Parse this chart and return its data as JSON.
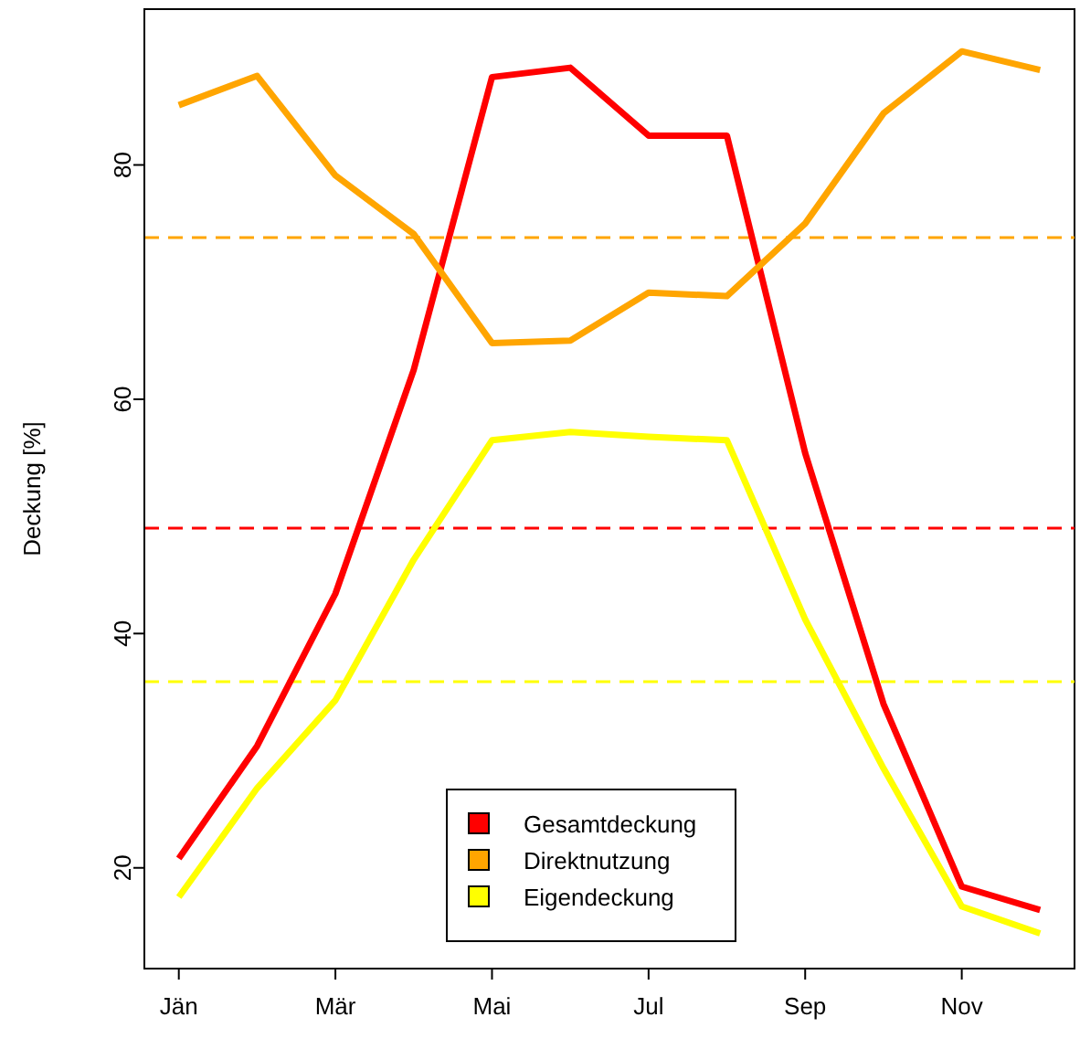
{
  "chart_data": {
    "type": "line",
    "ylabel": "Deckung [%]",
    "categories": [
      "Jän",
      null,
      "Mär",
      null,
      "Mai",
      null,
      "Jul",
      null,
      "Sep",
      null,
      "Nov",
      null
    ],
    "series": [
      {
        "name": "Gesamtdeckung",
        "color": "#ff0000",
        "values": [
          20.8,
          30.4,
          43.4,
          62.5,
          87.5,
          88.3,
          82.5,
          82.5,
          55.4,
          34.0,
          18.4,
          16.4
        ]
      },
      {
        "name": "Direktnutzung",
        "color": "#ffa500",
        "values": [
          85.1,
          87.6,
          79.1,
          74.1,
          64.8,
          65.0,
          69.1,
          68.8,
          75.0,
          84.4,
          89.7,
          88.1
        ]
      },
      {
        "name": "Eigendeckung",
        "color": "#ffff00",
        "values": [
          17.5,
          26.8,
          34.3,
          46.3,
          56.5,
          57.2,
          56.8,
          56.5,
          41.2,
          28.5,
          16.7,
          14.4
        ]
      }
    ],
    "ref_lines": [
      {
        "axis": "y",
        "value": 73.8,
        "color": "#ffa500",
        "line_style": "dashed"
      },
      {
        "axis": "y",
        "value": 49.0,
        "color": "#ff0000",
        "line_style": "dashed"
      },
      {
        "axis": "y",
        "value": 35.9,
        "color": "#ffff00",
        "line_style": "dashed"
      }
    ],
    "ylim": [
      11.4,
      93.3
    ],
    "yticks": [
      20,
      40,
      60,
      80
    ],
    "grid": false,
    "legend": "bottom",
    "marker": "none",
    "line_style": "solid"
  }
}
